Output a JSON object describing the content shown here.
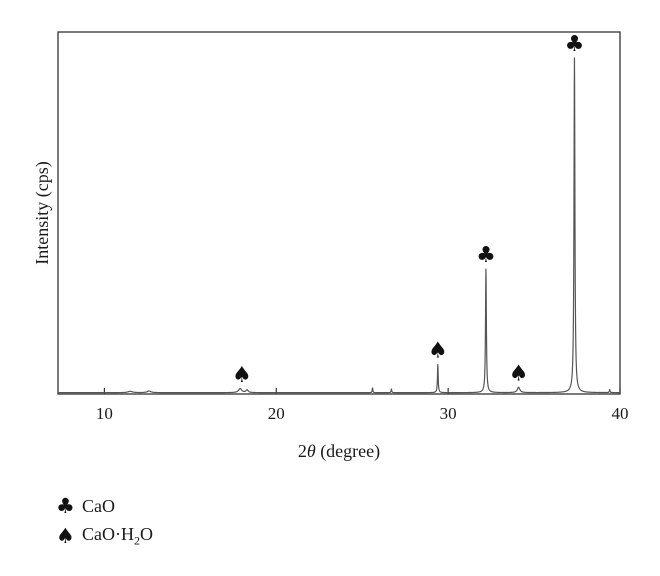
{
  "chart_data": {
    "type": "line",
    "xlabel_prefix": "2",
    "xlabel_theta": "θ",
    "xlabel_suffix": " (degree)",
    "ylabel": "Intensity (cps)",
    "xlim": [
      7.3,
      40
    ],
    "ylim": [
      0,
      1.08
    ],
    "xticks": [
      10,
      20,
      30,
      40
    ],
    "grid": false,
    "series_color": "#555555",
    "baseline": 0.004,
    "peaks": [
      {
        "x": 11.5,
        "h": 0.004,
        "w": 0.6
      },
      {
        "x": 12.6,
        "h": 0.005,
        "w": 0.5
      },
      {
        "x": 17.9,
        "h": 0.012,
        "w": 0.45
      },
      {
        "x": 18.3,
        "h": 0.008,
        "w": 0.3
      },
      {
        "x": 25.6,
        "h": 0.015,
        "w": 0.08
      },
      {
        "x": 26.7,
        "h": 0.012,
        "w": 0.08
      },
      {
        "x": 29.4,
        "h": 0.085,
        "w": 0.1
      },
      {
        "x": 32.2,
        "h": 0.37,
        "w": 0.12
      },
      {
        "x": 34.1,
        "h": 0.016,
        "w": 0.35
      },
      {
        "x": 37.35,
        "h": 1.0,
        "w": 0.13
      },
      {
        "x": 39.4,
        "h": 0.01,
        "w": 0.08
      }
    ],
    "markers": [
      {
        "x": 18.0,
        "y": 0.012,
        "symbol": "♠"
      },
      {
        "x": 29.4,
        "y": 0.085,
        "symbol": "♠"
      },
      {
        "x": 32.2,
        "y": 0.37,
        "symbol": "♣"
      },
      {
        "x": 34.1,
        "y": 0.016,
        "symbol": "♠"
      },
      {
        "x": 37.35,
        "y": 1.0,
        "symbol": "♣"
      }
    ]
  },
  "legend": [
    {
      "symbol": "♣",
      "text": "CaO"
    },
    {
      "symbol": "♠",
      "text_prefix": "CaO·H",
      "text_sub": "2",
      "text_suffix": "O"
    }
  ]
}
